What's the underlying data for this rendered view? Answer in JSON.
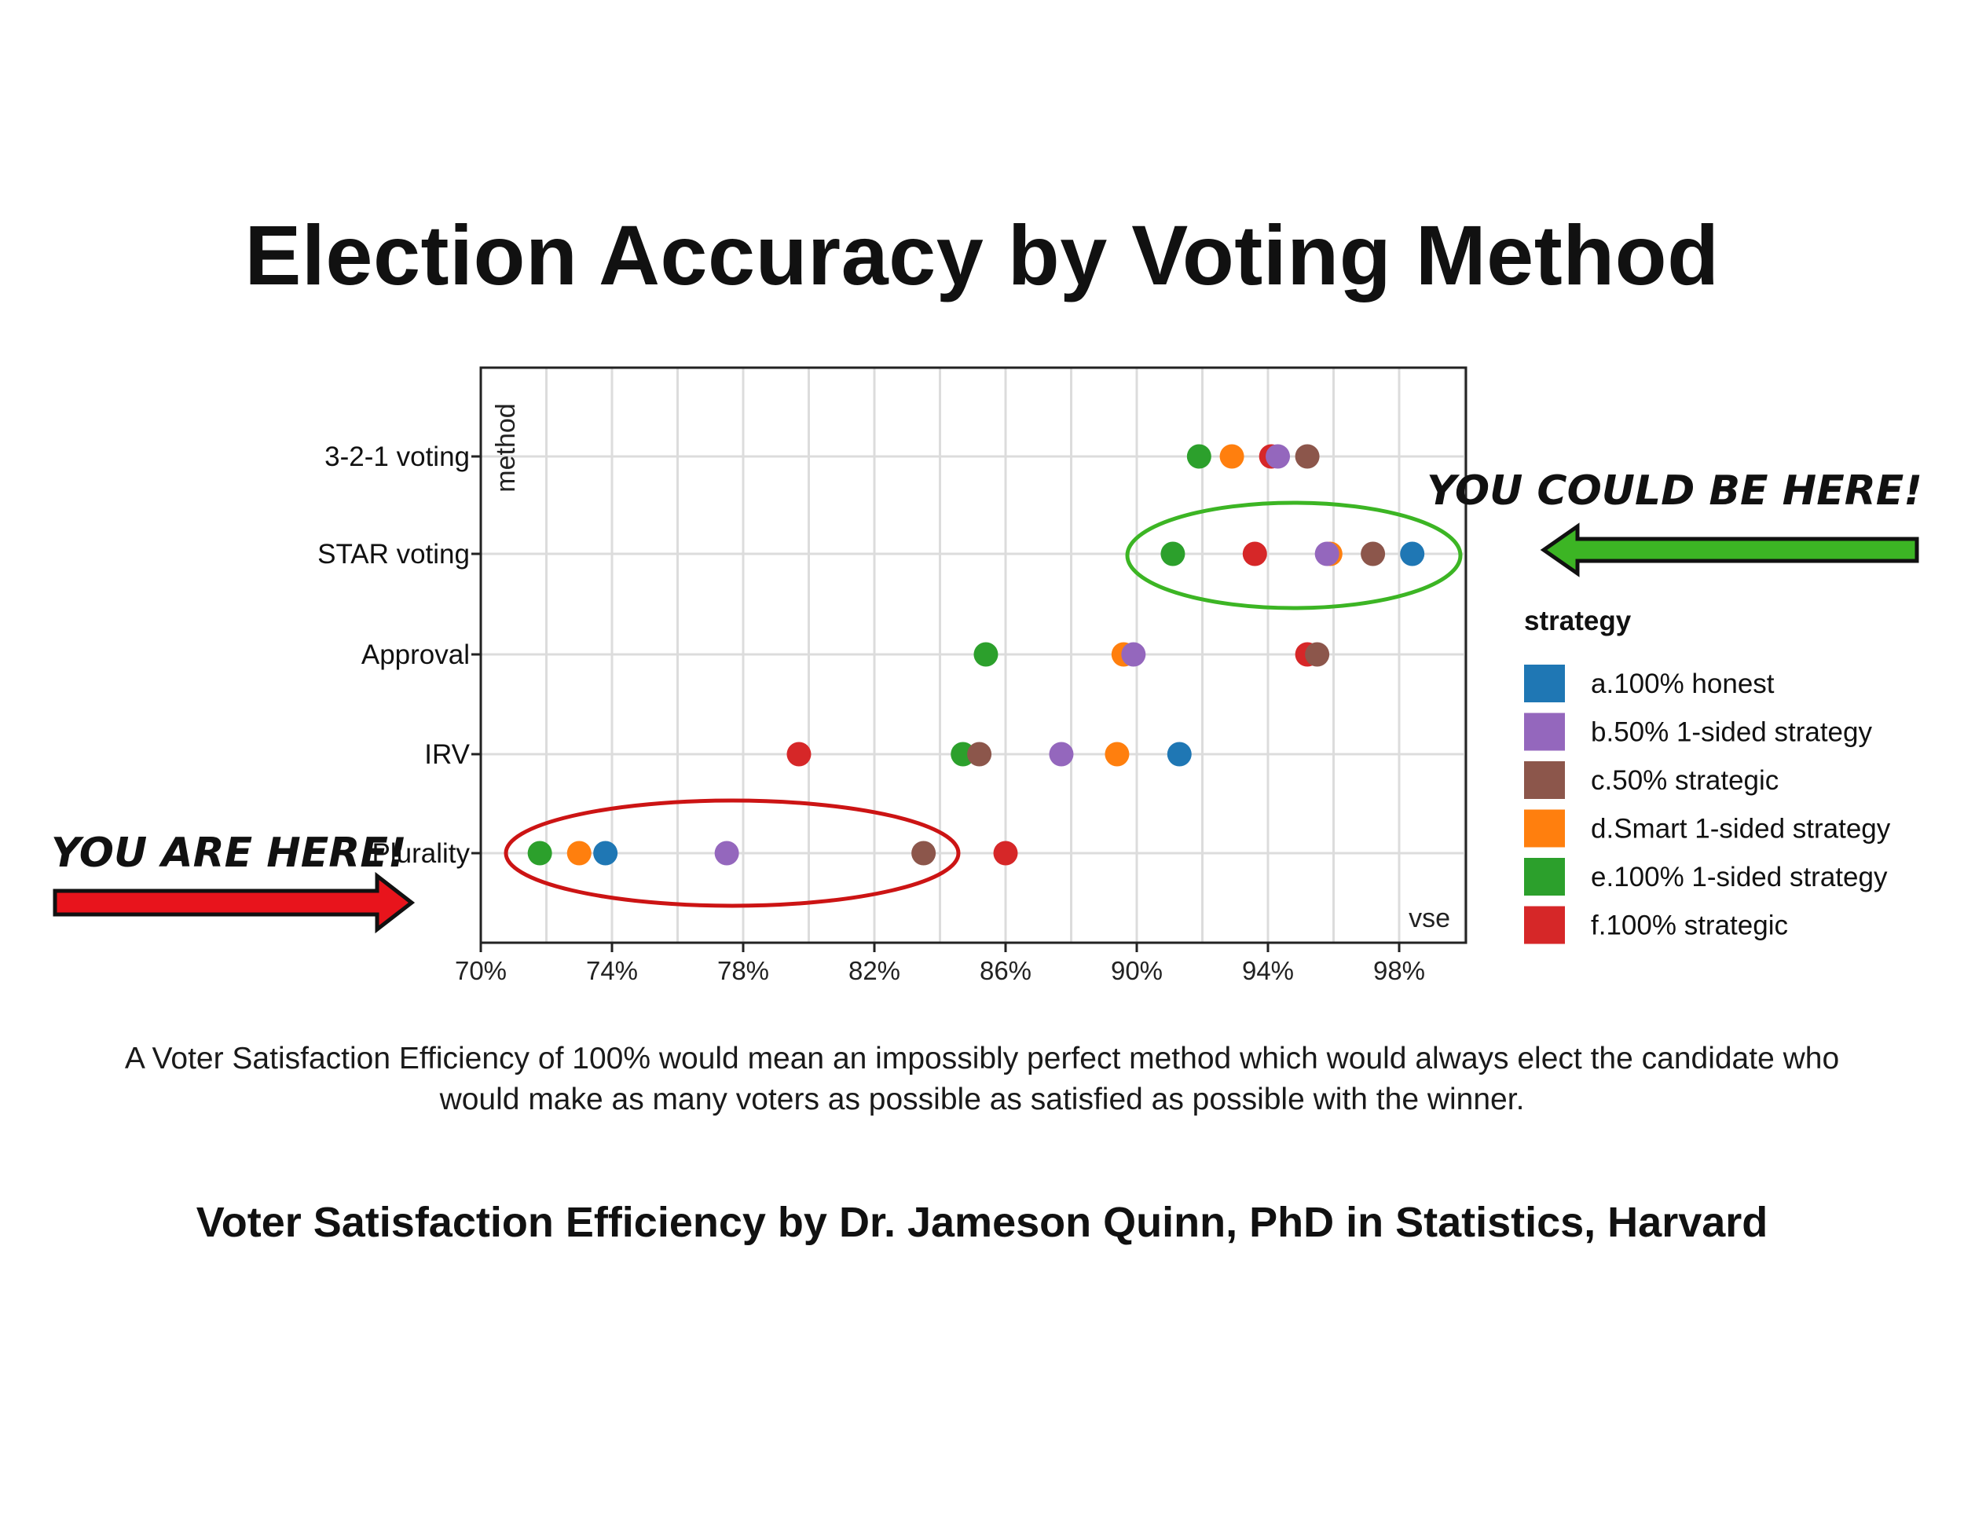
{
  "title": "Election Accuracy by Voting Method",
  "caption": "A Voter Satisfaction Efficiency of 100% would mean an impossibly perfect method which would always elect the candidate who would make as many voters as possible as satisfied as possible with the winner.",
  "credit": "Voter Satisfaction Efficiency by Dr. Jameson Quinn, PhD in Statistics, Harvard",
  "annotations": {
    "you_could_be_here": "YOU COULD BE HERE!",
    "you_are_here": "YOU ARE HERE!",
    "green_color": "#3cb524",
    "red_color": "#e8141c"
  },
  "chart_data": {
    "type": "scatter",
    "xlabel": "vse",
    "ylabel": "method",
    "xlim": [
      70,
      100
    ],
    "xticks": [
      70,
      74,
      78,
      82,
      86,
      90,
      94,
      98
    ],
    "xtick_labels": [
      "70%",
      "74%",
      "78%",
      "82%",
      "86%",
      "90%",
      "94%",
      "98%"
    ],
    "categories": [
      "3-2-1 voting",
      "STAR voting",
      "Approval",
      "IRV",
      "Plurality"
    ],
    "grid": true,
    "legend_title": "strategy",
    "legend_position": "right",
    "series": [
      {
        "name": "a.100% honest",
        "color": "#1f77b4",
        "points": [
          {
            "method": "STAR voting",
            "x": 98.4
          },
          {
            "method": "IRV",
            "x": 91.3
          },
          {
            "method": "Plurality",
            "x": 73.8
          }
        ]
      },
      {
        "name": "b.50% 1-sided strategy",
        "color": "#9467bd",
        "points": [
          {
            "method": "3-2-1 voting",
            "x": 94.3
          },
          {
            "method": "STAR voting",
            "x": 95.8
          },
          {
            "method": "Approval",
            "x": 89.9
          },
          {
            "method": "IRV",
            "x": 87.7
          },
          {
            "method": "Plurality",
            "x": 77.5
          }
        ]
      },
      {
        "name": "c.50% strategic",
        "color": "#8c564b",
        "points": [
          {
            "method": "3-2-1 voting",
            "x": 95.2
          },
          {
            "method": "STAR voting",
            "x": 97.2
          },
          {
            "method": "Approval",
            "x": 95.5
          },
          {
            "method": "IRV",
            "x": 85.2
          },
          {
            "method": "Plurality",
            "x": 83.5
          }
        ]
      },
      {
        "name": "d.Smart 1-sided strategy",
        "color": "#ff7f0e",
        "points": [
          {
            "method": "3-2-1 voting",
            "x": 92.9
          },
          {
            "method": "STAR voting",
            "x": 95.9
          },
          {
            "method": "Approval",
            "x": 89.6
          },
          {
            "method": "IRV",
            "x": 89.4
          },
          {
            "method": "Plurality",
            "x": 73.0
          }
        ]
      },
      {
        "name": "e.100% 1-sided strategy",
        "color": "#2ca02c",
        "points": [
          {
            "method": "3-2-1 voting",
            "x": 91.9
          },
          {
            "method": "STAR voting",
            "x": 91.1
          },
          {
            "method": "Approval",
            "x": 85.4
          },
          {
            "method": "IRV",
            "x": 84.7
          },
          {
            "method": "Plurality",
            "x": 71.8
          }
        ]
      },
      {
        "name": "f.100% strategic",
        "color": "#d62728",
        "points": [
          {
            "method": "3-2-1 voting",
            "x": 94.1
          },
          {
            "method": "STAR voting",
            "x": 93.6
          },
          {
            "method": "Approval",
            "x": 95.2
          },
          {
            "method": "IRV",
            "x": 79.7
          },
          {
            "method": "Plurality",
            "x": 86.0
          }
        ]
      }
    ]
  }
}
